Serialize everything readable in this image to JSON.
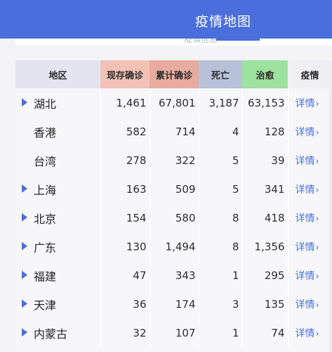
{
  "header": {
    "title": "疫情地图"
  },
  "table": {
    "columns": [
      "地区",
      "现存确诊",
      "累计确诊",
      "死亡",
      "治愈",
      "疫情"
    ],
    "rows": [
      {
        "region": "湖北",
        "expandable": true,
        "current": "1,461",
        "total": "67,801",
        "dead": "3,187",
        "cured": "63,153",
        "detail": "详情"
      },
      {
        "region": "香港",
        "expandable": false,
        "current": "582",
        "total": "714",
        "dead": "4",
        "cured": "128",
        "detail": "详情"
      },
      {
        "region": "台湾",
        "expandable": false,
        "current": "278",
        "total": "322",
        "dead": "5",
        "cured": "39",
        "detail": "详情"
      },
      {
        "region": "上海",
        "expandable": true,
        "current": "163",
        "total": "509",
        "dead": "5",
        "cured": "341",
        "detail": "详情"
      },
      {
        "region": "北京",
        "expandable": true,
        "current": "154",
        "total": "580",
        "dead": "8",
        "cured": "418",
        "detail": "详情"
      },
      {
        "region": "广东",
        "expandable": true,
        "current": "130",
        "total": "1,494",
        "dead": "8",
        "cured": "1,356",
        "detail": "详情"
      },
      {
        "region": "福建",
        "expandable": true,
        "current": "47",
        "total": "343",
        "dead": "1",
        "cured": "295",
        "detail": "详情"
      },
      {
        "region": "天津",
        "expandable": true,
        "current": "36",
        "total": "174",
        "dead": "3",
        "cured": "135",
        "detail": "详情"
      },
      {
        "region": "内蒙古",
        "expandable": true,
        "current": "32",
        "total": "107",
        "dead": "1",
        "cured": "74",
        "detail": "详情"
      }
    ]
  },
  "colors": {
    "accent": "#4a6fdc",
    "current_header": "#f3c2b6",
    "total_header": "#e7aba0",
    "dead_header": "#b7c2d8",
    "cured_header": "#9de29f"
  },
  "icons": {
    "expand": "triangle-right-icon",
    "detail": "chevron-right-icon"
  }
}
